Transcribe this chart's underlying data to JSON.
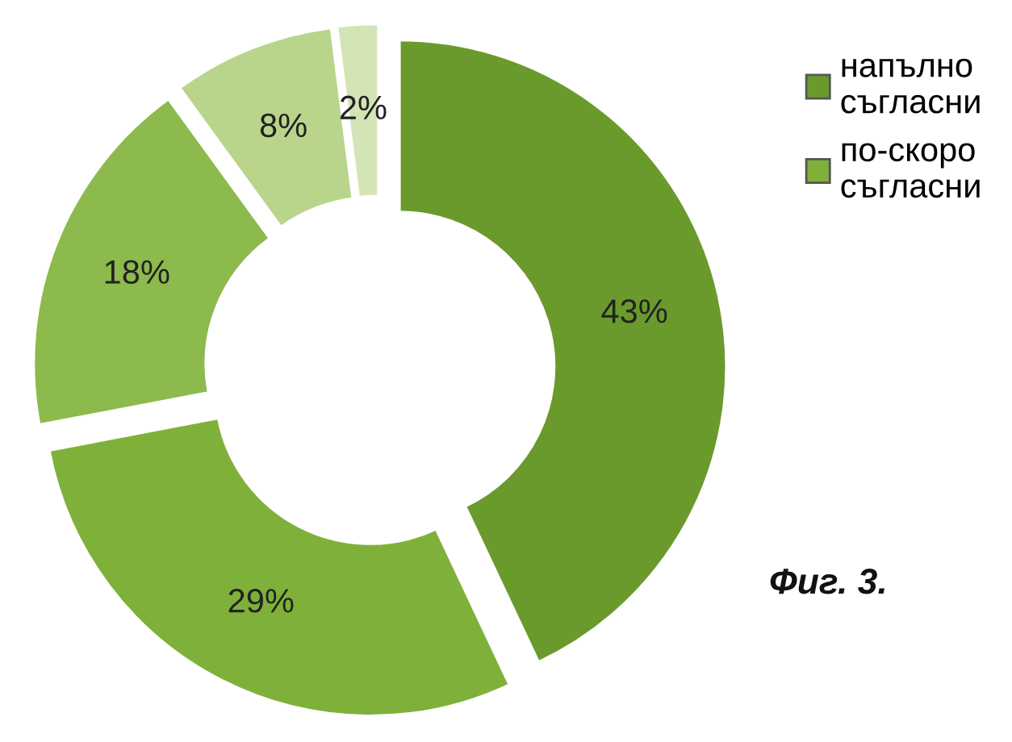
{
  "chart_data": {
    "type": "donut",
    "categories": [
      "напълно съгласни",
      "по-скоро съгласни",
      null,
      null,
      null
    ],
    "values": [
      43,
      29,
      18,
      8,
      2
    ],
    "value_labels": [
      "43%",
      "29%",
      "18%",
      "8%",
      "2%"
    ],
    "colors": [
      "#6b9a2c",
      "#7fb13a",
      "#8cba4c",
      "#b9d58c",
      "#d3e4b5"
    ],
    "legend": "top right",
    "annotations": [
      "Фиг. 3."
    ]
  }
}
